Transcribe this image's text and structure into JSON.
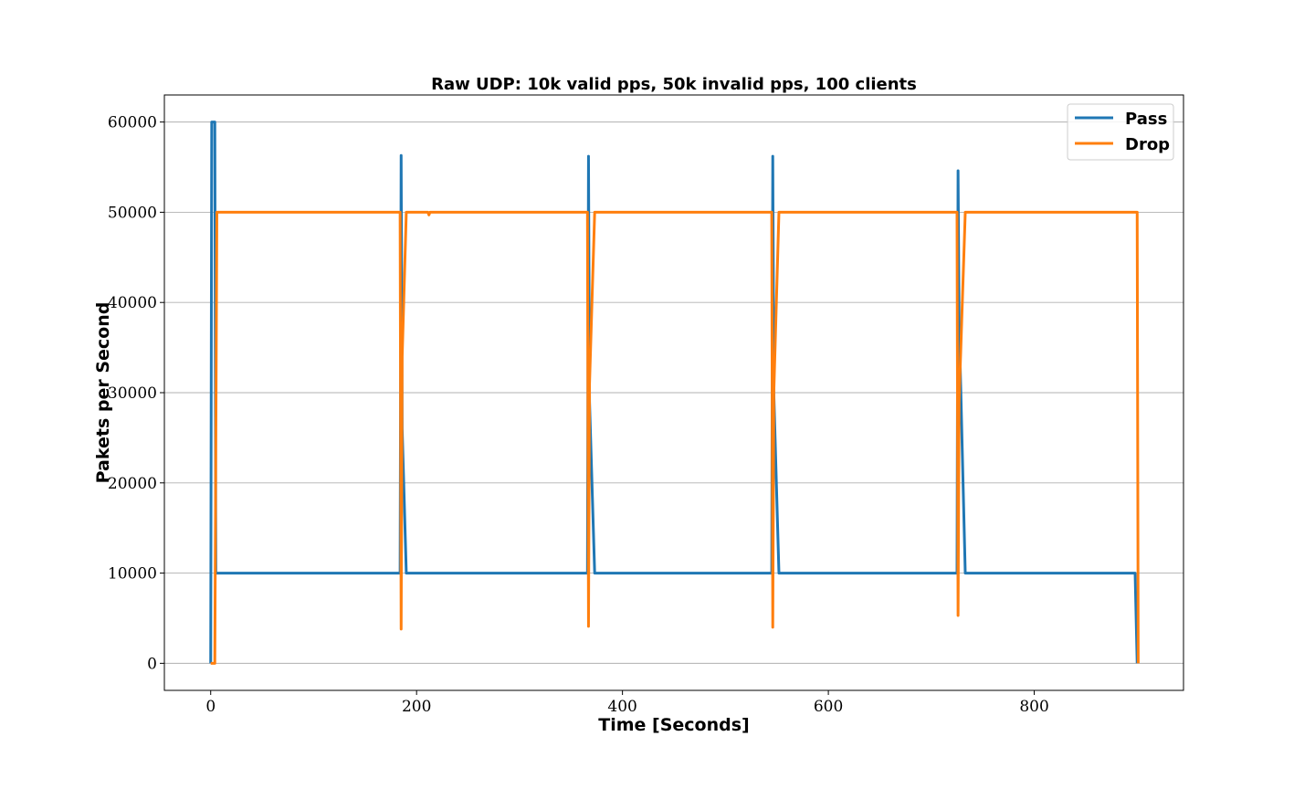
{
  "chart_data": {
    "type": "line",
    "title": "Raw UDP: 10k valid pps, 50k invalid pps, 100 clients",
    "xlabel": "Time [Seconds]",
    "ylabel": "Pakets per Second",
    "xlim": [
      -45,
      945
    ],
    "ylim": [
      -3000,
      63000
    ],
    "x_ticks": [
      0,
      200,
      400,
      600,
      800
    ],
    "x_tick_labels": [
      "0",
      "200",
      "400",
      "600",
      "800"
    ],
    "y_ticks": [
      0,
      10000,
      20000,
      30000,
      40000,
      50000,
      60000
    ],
    "y_tick_labels": [
      "0",
      "10000",
      "20000",
      "30000",
      "40000",
      "50000",
      "60000"
    ],
    "grid": "horizontal",
    "legend_position": "top-right",
    "series": [
      {
        "name": "Pass",
        "color": "#1f77b4",
        "x": [
          0,
          1,
          4,
          5,
          6,
          184,
          185,
          186,
          190,
          366,
          367,
          368,
          373,
          545,
          546,
          547,
          552,
          725,
          726,
          727,
          733,
          898,
          900
        ],
        "y": [
          0,
          60000,
          60000,
          10000,
          10000,
          10000,
          56300,
          26000,
          10000,
          10000,
          56200,
          29000,
          10000,
          10000,
          56200,
          30000,
          10000,
          10000,
          54600,
          38000,
          10000,
          10000,
          0
        ]
      },
      {
        "name": "Drop",
        "color": "#ff7f0e",
        "x": [
          0,
          4,
          6,
          184,
          185,
          186,
          190,
          211,
          212,
          213,
          366,
          367,
          368,
          373,
          545,
          546,
          547,
          552,
          725,
          726,
          727,
          733,
          900,
          901
        ],
        "y": [
          0,
          0,
          50000,
          50000,
          3800,
          34000,
          50000,
          50000,
          49700,
          50000,
          50000,
          4100,
          31000,
          50000,
          50000,
          4000,
          30000,
          50000,
          50000,
          5300,
          29000,
          50000,
          50000,
          0
        ]
      }
    ]
  }
}
